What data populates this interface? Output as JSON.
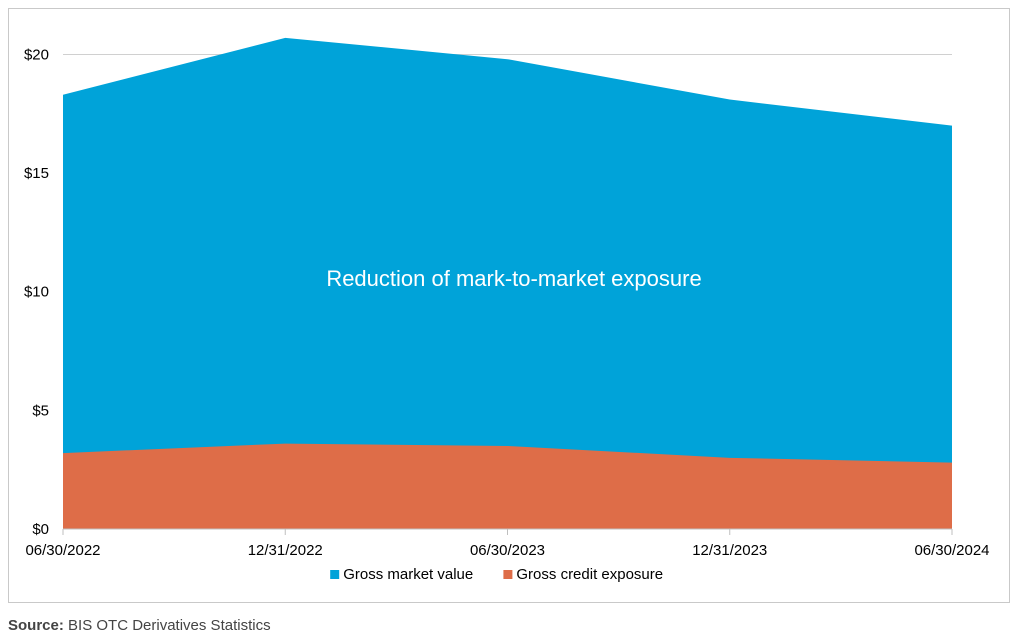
{
  "chart_data": {
    "type": "area",
    "stacked": false,
    "categories": [
      "06/30/2022",
      "12/31/2022",
      "06/30/2023",
      "12/31/2023",
      "06/30/2024"
    ],
    "series": [
      {
        "name": "Gross market value",
        "values": [
          18.3,
          20.7,
          19.8,
          18.1,
          17.0
        ],
        "color": "#00a3d9"
      },
      {
        "name": "Gross credit exposure",
        "values": [
          3.2,
          3.6,
          3.5,
          3.0,
          2.8
        ],
        "color": "#de6d48"
      }
    ],
    "ylim": [
      0,
      22
    ],
    "yticks": [
      0,
      5,
      10,
      15,
      20
    ],
    "ytick_labels": [
      "$0",
      "$5",
      "$10",
      "$15",
      "$20"
    ],
    "grid": true,
    "legend_position": "bottom",
    "annotation": {
      "text": "Reduction of mark-to-market exposure",
      "color": "#ffffff"
    }
  },
  "source": {
    "label": "Source:",
    "text": "BIS OTC Derivatives Statistics"
  }
}
